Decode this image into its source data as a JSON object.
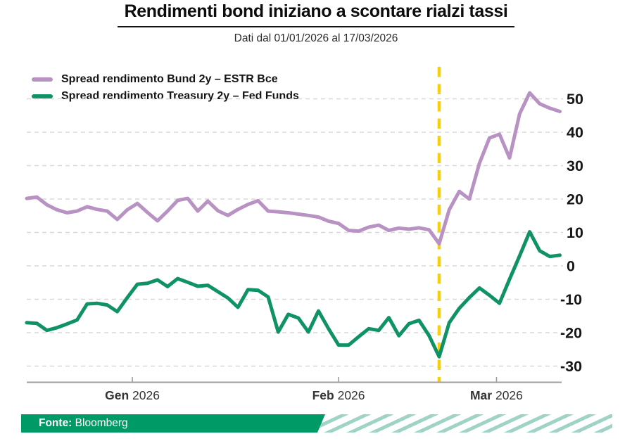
{
  "header": {
    "title": "Rendimenti bond iniziano a scontare rialzi tassi",
    "subtitle": "Dati dal 01/01/2026 al 17/03/2026"
  },
  "chart_data": {
    "type": "line",
    "title": "Rendimenti bond iniziano a scontare rialzi tassi",
    "date_range": "01/01/2026 - 17/03/2026",
    "x_dates": [
      "01/01",
      "02/01",
      "05/01",
      "06/01",
      "07/01",
      "08/01",
      "09/01",
      "12/01",
      "13/01",
      "14/01",
      "15/01",
      "16/01",
      "19/01",
      "20/01",
      "21/01",
      "22/01",
      "23/01",
      "26/01",
      "27/01",
      "28/01",
      "29/01",
      "30/01",
      "02/02",
      "03/02",
      "04/02",
      "05/02",
      "06/02",
      "09/02",
      "10/02",
      "11/02",
      "12/02",
      "13/02",
      "16/02",
      "17/02",
      "18/02",
      "19/02",
      "20/02",
      "23/02",
      "24/02",
      "25/02",
      "26/02",
      "27/02",
      "02/03",
      "03/03",
      "04/03",
      "05/03",
      "06/03",
      "09/03",
      "10/03",
      "11/03",
      "12/03",
      "13/03",
      "16/03",
      "17/03"
    ],
    "series": [
      {
        "name": "Spread rendimento Bund 2y – ESTR Bce",
        "color": "#b792c3",
        "values": [
          20.2,
          20.6,
          18.3,
          16.8,
          15.9,
          16.4,
          17.7,
          16.9,
          16.4,
          13.9,
          16.8,
          18.7,
          16.0,
          13.5,
          16.4,
          19.6,
          20.2,
          16.4,
          19.4,
          16.5,
          15.1,
          16.9,
          18.4,
          19.5,
          16.4,
          16.2,
          15.9,
          15.5,
          15.1,
          14.6,
          13.4,
          12.7,
          10.6,
          10.4,
          11.6,
          12.2,
          10.6,
          11.3,
          11.0,
          11.4,
          10.8,
          6.6,
          16.8,
          22.3,
          20.0,
          30.7,
          38.3,
          39.4,
          32.3,
          45.5,
          51.8,
          48.5,
          47.2,
          46.2
        ]
      },
      {
        "name": "Spread rendimento Treasury 2y – Fed Funds",
        "color": "#0f9364",
        "values": [
          -17.0,
          -17.2,
          -19.3,
          -18.5,
          -17.4,
          -16.2,
          -11.4,
          -11.2,
          -11.7,
          -13.7,
          -9.5,
          -5.5,
          -5.2,
          -4.2,
          -6.2,
          -3.8,
          -4.9,
          -6.1,
          -5.8,
          -7.7,
          -9.6,
          -12.4,
          -7.1,
          -7.3,
          -9.3,
          -19.8,
          -14.5,
          -15.6,
          -19.8,
          -13.5,
          -18.8,
          -23.7,
          -23.7,
          -21.2,
          -18.8,
          -19.3,
          -15.5,
          -20.9,
          -17.3,
          -16.3,
          -20.9,
          -27.2,
          -17.0,
          -12.7,
          -9.5,
          -6.6,
          -8.8,
          -11.2,
          -4.0,
          3.0,
          10.2,
          4.5,
          2.8,
          3.2
        ]
      }
    ],
    "y_ticks": [
      50,
      40,
      30,
      20,
      10,
      0,
      -10,
      -20,
      -30
    ],
    "ylim": [
      -34.7,
      59.5
    ],
    "x_ticks": [
      {
        "month": "Gen",
        "year": "2026",
        "index": 10.5
      },
      {
        "month": "Feb",
        "year": "2026",
        "index": 31.0
      },
      {
        "month": "Mar",
        "year": "2026",
        "index": 46.7
      }
    ],
    "vline": {
      "date": "27/02/2026",
      "index": 41,
      "color": "#f9ce0b"
    },
    "grid": {
      "horizontal": "dashed",
      "color": "#d8d8d8"
    },
    "axis_color": "#9e9e9e",
    "legend_position": "top-left"
  },
  "footer": {
    "source_label": "Fonte:",
    "source_value": "Bloomberg",
    "bar_color": "#009a66",
    "stripe_color": "#9fd3c6"
  }
}
